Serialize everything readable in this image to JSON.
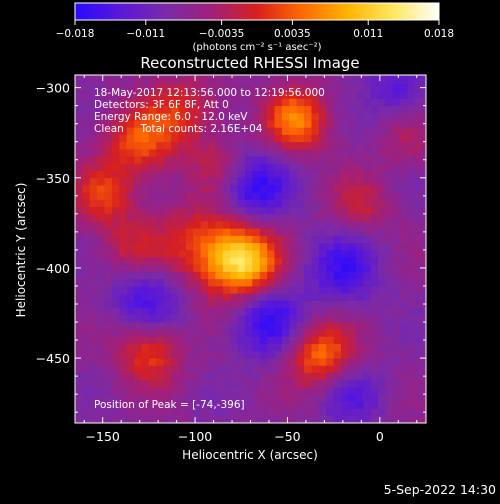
{
  "chart_data": {
    "type": "heatmap",
    "title": "Reconstructed RHESSI Image",
    "xlabel": "Heliocentric X (arcsec)",
    "ylabel": "Heliocentric Y (arcsec)",
    "xlim": [
      -165,
      25
    ],
    "ylim": [
      -486,
      -293
    ],
    "x_ticks": [
      -150,
      -100,
      -50,
      0
    ],
    "x_tick_labels": [
      "−150",
      "−100",
      "−50",
      "0"
    ],
    "y_ticks": [
      -300,
      -350,
      -400,
      -450
    ],
    "y_tick_labels": [
      "−300",
      "−350",
      "−400",
      "−450"
    ],
    "colorbar": {
      "min": -0.018,
      "max": 0.018,
      "ticks": [
        -0.018,
        -0.011,
        -0.0035,
        0.0035,
        0.011,
        0.018
      ],
      "tick_labels": [
        "−0.018",
        "−0.011",
        "−0.0035",
        "0.0035",
        "0.011",
        "0.018"
      ],
      "units_label": "(photons cm⁻² s⁻¹ asec⁻²)",
      "colors": [
        "#2a0aff",
        "#5a18d8",
        "#7a2aa8",
        "#a0207a",
        "#d8201e",
        "#ff6a00",
        "#ffb400",
        "#ffe860",
        "#ffffff"
      ]
    },
    "annotations": [
      "18-May-2017 12:13:56.000 to 12:19:56.000",
      "Detectors: 3F 6F 8F, Att 0",
      "Energy Range: 6.0 - 12.0 keV",
      "Clean     Total counts: 2.16E+04"
    ],
    "peak_label": "Position of Peak = [-74,-396]",
    "peak": [
      -74,
      -396
    ],
    "sources": [
      {
        "x": -74,
        "y": -396,
        "amp": 0.018,
        "sigma": 13
      },
      {
        "x": -95,
        "y": -388,
        "amp": 0.009,
        "sigma": 18
      },
      {
        "x": -45,
        "y": -318,
        "amp": 0.013,
        "sigma": 12
      },
      {
        "x": -32,
        "y": -448,
        "amp": 0.012,
        "sigma": 13
      },
      {
        "x": -125,
        "y": -447,
        "amp": 0.0095,
        "sigma": 12
      },
      {
        "x": -130,
        "y": -330,
        "amp": 0.01,
        "sigma": 14
      },
      {
        "x": -150,
        "y": -360,
        "amp": 0.008,
        "sigma": 12
      },
      {
        "x": -105,
        "y": -312,
        "amp": 0.007,
        "sigma": 14
      },
      {
        "x": -85,
        "y": -345,
        "amp": 0.006,
        "sigma": 12
      },
      {
        "x": -135,
        "y": -390,
        "amp": 0.006,
        "sigma": 12
      },
      {
        "x": -10,
        "y": -365,
        "amp": 0.0055,
        "sigma": 12
      },
      {
        "x": 15,
        "y": -330,
        "amp": 0.004,
        "sigma": 10
      },
      {
        "x": -70,
        "y": -355,
        "amp": -0.011,
        "sigma": 14
      },
      {
        "x": -60,
        "y": -430,
        "amp": -0.009,
        "sigma": 14
      },
      {
        "x": -125,
        "y": -415,
        "amp": -0.008,
        "sigma": 14
      },
      {
        "x": -20,
        "y": -400,
        "amp": -0.008,
        "sigma": 14
      },
      {
        "x": -15,
        "y": -470,
        "amp": -0.006,
        "sigma": 12
      },
      {
        "x": 10,
        "y": -300,
        "amp": -0.006,
        "sigma": 12
      }
    ]
  },
  "footer": {
    "date_label": "5-Sep-2022 14:30"
  }
}
